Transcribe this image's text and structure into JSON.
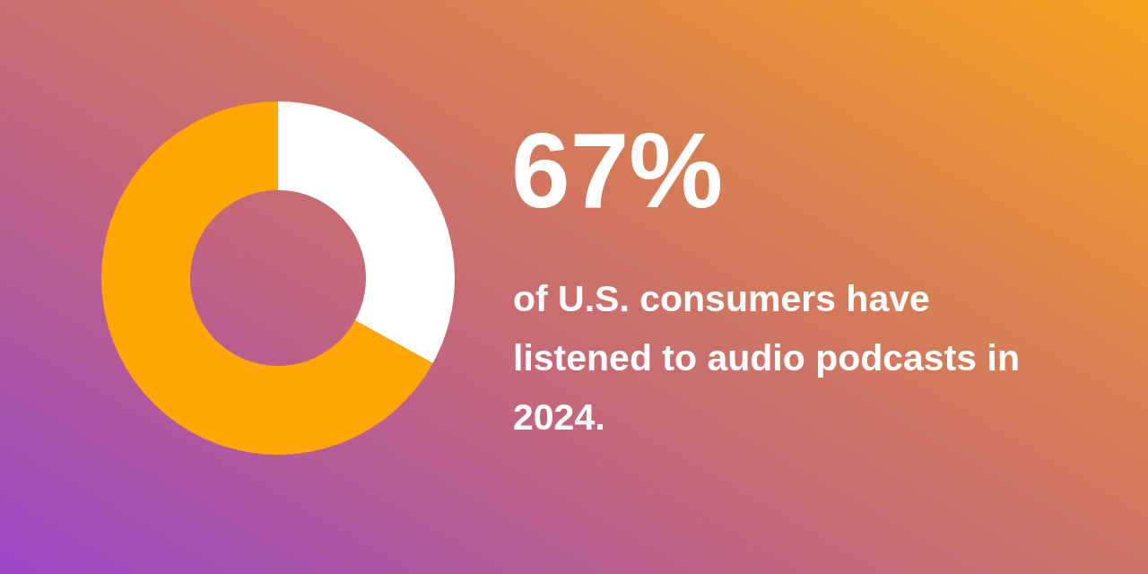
{
  "chart_data": {
    "type": "donut",
    "title": "67%",
    "subtitle": "of U.S. consumers have listened to audio podcasts in 2024.",
    "categories": [
      null,
      null
    ],
    "values": [
      33,
      67
    ],
    "colors": [
      "#ffffff",
      "#ffa600"
    ]
  }
}
